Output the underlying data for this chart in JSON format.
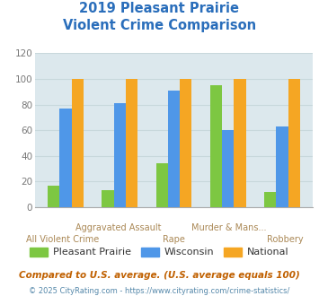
{
  "title_line1": "2019 Pleasant Prairie",
  "title_line2": "Violent Crime Comparison",
  "title_color": "#2a6ebb",
  "categories_top": [
    "Aggravated Assault",
    "Murder & Mans..."
  ],
  "categories_bottom": [
    "All Violent Crime",
    "Rape",
    "Robbery"
  ],
  "categories_all": [
    "All Violent Crime",
    "Aggravated Assault",
    "Rape",
    "Murder & Mans...",
    "Robbery"
  ],
  "series": {
    "Pleasant Prairie": [
      17,
      13,
      34,
      95,
      12
    ],
    "Wisconsin": [
      77,
      81,
      91,
      60,
      63
    ],
    "National": [
      100,
      100,
      100,
      100,
      100
    ]
  },
  "colors": {
    "Pleasant Prairie": "#7dc742",
    "Wisconsin": "#4f97e8",
    "National": "#f5a623"
  },
  "ylim": [
    0,
    120
  ],
  "yticks": [
    0,
    20,
    40,
    60,
    80,
    100,
    120
  ],
  "bar_width": 0.22,
  "grid_color": "#c8d8dc",
  "bg_color": "#dce8ed",
  "footnote1": "Compared to U.S. average. (U.S. average equals 100)",
  "footnote2": "© 2025 CityRating.com - https://www.cityrating.com/crime-statistics/",
  "footnote1_color": "#c06000",
  "footnote2_color": "#5588aa",
  "label_color": "#aa8855"
}
